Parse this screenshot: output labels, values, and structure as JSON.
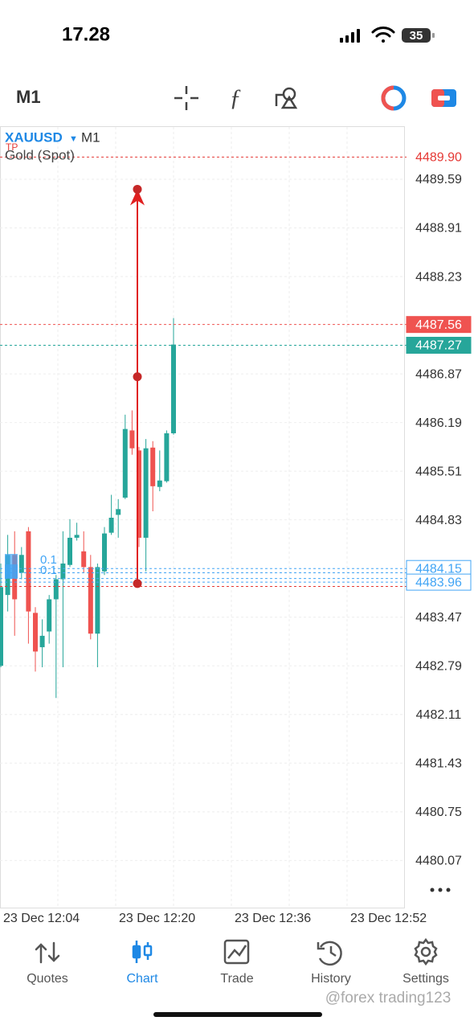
{
  "status_bar": {
    "time": "17.28",
    "battery": "35"
  },
  "toolbar": {
    "timeframe": "M1"
  },
  "chart_data": {
    "type": "candlestick",
    "symbol": "XAUUSD",
    "timeframe": "M1",
    "tp_label": "TP",
    "description": "Gold (Spot)",
    "ylim": [
      4479.4,
      4490.32
    ],
    "yticks": [
      4489.59,
      4488.91,
      4488.23,
      4486.87,
      4486.19,
      4485.51,
      4484.83,
      4483.47,
      4482.79,
      4482.11,
      4481.43,
      4480.75,
      4480.07
    ],
    "grid": true,
    "colors": {
      "up": "#26a69a",
      "down": "#ef5350"
    },
    "candles": {
      "open": [
        4482.79,
        4483.78,
        4484.34,
        4484.09,
        4484.67,
        4483.53,
        4483.05,
        4483.27,
        4483.72,
        4484.0,
        4484.2,
        4484.58,
        4484.39,
        4484.17,
        4483.24,
        4484.11,
        4484.65,
        4484.9,
        4485.14,
        4486.08,
        4485.8,
        4484.58,
        4485.84,
        4485.29,
        4485.37,
        4486.04
      ],
      "high": [
        4484.22,
        4484.62,
        4484.67,
        4484.45,
        4484.73,
        4483.61,
        4483.44,
        4483.78,
        4484.06,
        4484.67,
        4484.84,
        4484.79,
        4484.67,
        4484.34,
        4484.22,
        4484.73,
        4485.18,
        4485.12,
        4486.3,
        4486.36,
        4485.85,
        4485.96,
        4485.93,
        4485.8,
        4486.08,
        4487.65
      ],
      "low": [
        4482.77,
        4483.55,
        4483.21,
        4484.0,
        4483.1,
        4482.71,
        4482.77,
        4483.1,
        4482.34,
        4482.77,
        4484.17,
        4484.54,
        4484.09,
        4483.16,
        4482.77,
        4484.06,
        4484.62,
        4484.58,
        4485.12,
        4485.74,
        4484.45,
        4484.11,
        4484.95,
        4485.23,
        4485.35,
        4486.02
      ],
      "close": [
        4483.89,
        4484.34,
        4483.72,
        4484.34,
        4483.55,
        4482.99,
        4483.21,
        4483.72,
        4484.0,
        4484.22,
        4484.58,
        4484.62,
        4484.17,
        4483.24,
        4484.17,
        4484.64,
        4484.86,
        4484.98,
        4486.1,
        4485.83,
        4484.58,
        4485.83,
        4485.3,
        4485.38,
        4486.04,
        4487.28
      ]
    },
    "price_lines": [
      {
        "price": {
          "value": 4489.9,
          "label": "4489.90"
        },
        "style": "tp",
        "color": "#e53935",
        "show_label": true
      },
      {
        "price": 4487.56,
        "style": "ask",
        "color": "#ef5350",
        "show_label": true
      },
      {
        "price": 4487.27,
        "style": "bid",
        "color": "#26a69a",
        "show_label": true
      },
      {
        "price": 4484.15,
        "style": "order",
        "color": "#42a5f5",
        "show_label": true
      },
      {
        "price": 4484.09,
        "style": "order",
        "color": "#42a5f5",
        "show_label": false
      },
      {
        "price": 4484.01,
        "style": "order",
        "color": "#42a5f5",
        "show_label": false
      },
      {
        "price": 4483.96,
        "style": "order",
        "color": "#42a5f5",
        "show_label": true
      },
      {
        "price": 4483.9,
        "style": "order",
        "color": "#e53935",
        "show_label": false
      }
    ],
    "order_labels": [
      "0.1",
      "0.1"
    ],
    "trade": {
      "entry": 4483.94,
      "mid": 4486.83,
      "target": 4489.45,
      "color": "#e02020"
    },
    "x_labels": [
      "23 Dec 12:04",
      "23 Dec 12:20",
      "23 Dec 12:36",
      "23 Dec 12:52"
    ]
  },
  "nav": {
    "items": [
      "Quotes",
      "Chart",
      "Trade",
      "History",
      "Settings"
    ],
    "active": 1
  },
  "watermark": "@forex trading123"
}
